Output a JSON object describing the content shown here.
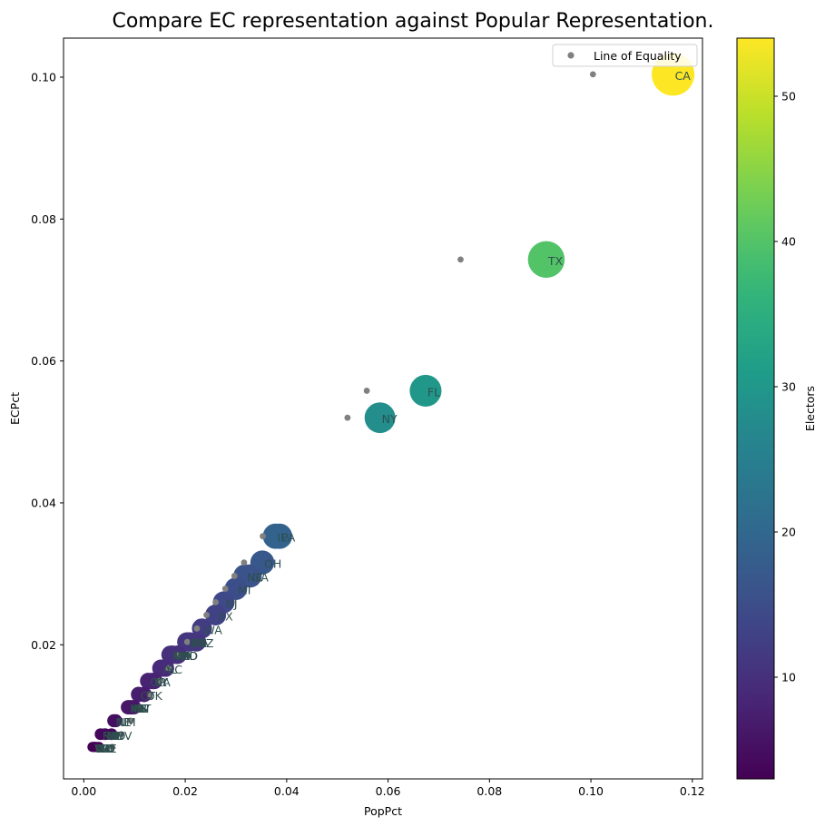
{
  "chart_data": {
    "type": "scatter",
    "title": "Compare EC representation against Popular Representation.",
    "xlabel": "PopPct",
    "ylabel": "ECPct",
    "xlim": [
      -0.004,
      0.122
    ],
    "ylim": [
      0.0011,
      0.1055
    ],
    "xticks": [
      0.0,
      0.02,
      0.04,
      0.06,
      0.08,
      0.1,
      0.12
    ],
    "yticks": [
      0.02,
      0.04,
      0.06,
      0.08,
      0.1
    ],
    "xtick_labels": [
      "0.00",
      "0.02",
      "0.04",
      "0.06",
      "0.08",
      "0.10",
      "0.12"
    ],
    "ytick_labels": [
      "0.02",
      "0.04",
      "0.06",
      "0.08",
      "0.10"
    ],
    "grid": false,
    "legend": {
      "position": "top-right",
      "entries": [
        "Line of Equality"
      ]
    },
    "colorbar": {
      "label": "Electors",
      "range": [
        3,
        54
      ],
      "ticks": [
        10,
        20,
        30,
        40,
        50
      ],
      "tick_labels": [
        "10",
        "20",
        "30",
        "40",
        "50"
      ],
      "colormap": "viridis"
    },
    "equality_series": {
      "name": "Line of Equality",
      "color": "#808080",
      "points": [
        [
          0.1004,
          0.1004
        ],
        [
          0.0743,
          0.0743
        ],
        [
          0.0558,
          0.0558
        ],
        [
          0.052,
          0.052
        ],
        [
          0.0353,
          0.0353
        ],
        [
          0.0316,
          0.0316
        ],
        [
          0.0297,
          0.0297
        ],
        [
          0.0279,
          0.0279
        ],
        [
          0.026,
          0.026
        ],
        [
          0.0242,
          0.0242
        ],
        [
          0.0223,
          0.0223
        ],
        [
          0.0204,
          0.0204
        ],
        [
          0.0186,
          0.0186
        ],
        [
          0.0167,
          0.0167
        ],
        [
          0.0149,
          0.0149
        ],
        [
          0.013,
          0.013
        ],
        [
          0.0112,
          0.0112
        ],
        [
          0.0093,
          0.0093
        ],
        [
          0.0074,
          0.0074
        ],
        [
          0.0056,
          0.0056
        ]
      ]
    },
    "states": [
      {
        "label": "CA",
        "pop": 0.1162,
        "ec": 0.1004,
        "electors": 54
      },
      {
        "label": "TX",
        "pop": 0.0912,
        "ec": 0.0743,
        "electors": 40
      },
      {
        "label": "FL",
        "pop": 0.0674,
        "ec": 0.0558,
        "electors": 30
      },
      {
        "label": "NY",
        "pop": 0.0584,
        "ec": 0.052,
        "electors": 28
      },
      {
        "label": "PA",
        "pop": 0.0386,
        "ec": 0.0353,
        "electors": 19
      },
      {
        "label": "IL",
        "pop": 0.0378,
        "ec": 0.0353,
        "electors": 19
      },
      {
        "label": "OH",
        "pop": 0.0352,
        "ec": 0.0316,
        "electors": 17
      },
      {
        "label": "GA",
        "pop": 0.0328,
        "ec": 0.0297,
        "electors": 16
      },
      {
        "label": "NC",
        "pop": 0.0318,
        "ec": 0.0297,
        "electors": 16
      },
      {
        "label": "MI",
        "pop": 0.03,
        "ec": 0.0279,
        "electors": 15
      },
      {
        "label": "NJ",
        "pop": 0.0276,
        "ec": 0.026,
        "electors": 14
      },
      {
        "label": "XX",
        "pop": 0.026,
        "ec": 0.0242,
        "electors": 13
      },
      {
        "label": "WA",
        "pop": 0.0233,
        "ec": 0.0223,
        "electors": 12
      },
      {
        "label": "AZ",
        "pop": 0.0222,
        "ec": 0.0204,
        "electors": 11
      },
      {
        "label": "TN",
        "pop": 0.0209,
        "ec": 0.0204,
        "electors": 11
      },
      {
        "label": "MA",
        "pop": 0.0208,
        "ec": 0.0204,
        "electors": 11
      },
      {
        "label": "IN",
        "pop": 0.0203,
        "ec": 0.0204,
        "electors": 11
      },
      {
        "label": "MD",
        "pop": 0.0185,
        "ec": 0.0186,
        "electors": 10
      },
      {
        "label": "MN",
        "pop": 0.0171,
        "ec": 0.0186,
        "electors": 10
      },
      {
        "label": "MO",
        "pop": 0.0184,
        "ec": 0.0186,
        "electors": 10
      },
      {
        "label": "WI",
        "pop": 0.0176,
        "ec": 0.0186,
        "electors": 10
      },
      {
        "label": "CO",
        "pop": 0.0174,
        "ec": 0.0186,
        "electors": 10
      },
      {
        "label": "AL",
        "pop": 0.0152,
        "ec": 0.0167,
        "electors": 9
      },
      {
        "label": "SC",
        "pop": 0.0161,
        "ec": 0.0167,
        "electors": 9
      },
      {
        "label": "LA",
        "pop": 0.0139,
        "ec": 0.0149,
        "electors": 8
      },
      {
        "label": "KY",
        "pop": 0.0135,
        "ec": 0.0149,
        "electors": 8
      },
      {
        "label": "OR",
        "pop": 0.0127,
        "ec": 0.0149,
        "electors": 8
      },
      {
        "label": "OK",
        "pop": 0.0119,
        "ec": 0.013,
        "electors": 7
      },
      {
        "label": "CT",
        "pop": 0.0108,
        "ec": 0.013,
        "electors": 7
      },
      {
        "label": "UT",
        "pop": 0.0099,
        "ec": 0.0112,
        "electors": 6
      },
      {
        "label": "IA",
        "pop": 0.0095,
        "ec": 0.0112,
        "electors": 6
      },
      {
        "label": "NV",
        "pop": 0.0094,
        "ec": 0.0112,
        "electors": 6
      },
      {
        "label": "AR",
        "pop": 0.0091,
        "ec": 0.0112,
        "electors": 6
      },
      {
        "label": "MS",
        "pop": 0.0088,
        "ec": 0.0112,
        "electors": 6
      },
      {
        "label": "KS",
        "pop": 0.0087,
        "ec": 0.0112,
        "electors": 6
      },
      {
        "label": "NM",
        "pop": 0.0063,
        "ec": 0.0093,
        "electors": 5
      },
      {
        "label": "NE",
        "pop": 0.0059,
        "ec": 0.0093,
        "electors": 5
      },
      {
        "label": "ID",
        "pop": 0.0055,
        "ec": 0.0074,
        "electors": 4
      },
      {
        "label": "WV",
        "pop": 0.0054,
        "ec": 0.0074,
        "electors": 4
      },
      {
        "label": "HI",
        "pop": 0.0043,
        "ec": 0.0074,
        "electors": 4
      },
      {
        "label": "NH",
        "pop": 0.0041,
        "ec": 0.0074,
        "electors": 4
      },
      {
        "label": "ME",
        "pop": 0.0041,
        "ec": 0.0074,
        "electors": 4
      },
      {
        "label": "RI",
        "pop": 0.0033,
        "ec": 0.0074,
        "electors": 4
      },
      {
        "label": "MT",
        "pop": 0.0033,
        "ec": 0.0074,
        "electors": 4
      },
      {
        "label": "DE",
        "pop": 0.003,
        "ec": 0.0056,
        "electors": 3
      },
      {
        "label": "SD",
        "pop": 0.0027,
        "ec": 0.0056,
        "electors": 3
      },
      {
        "label": "ND",
        "pop": 0.0023,
        "ec": 0.0056,
        "electors": 3
      },
      {
        "label": "AK",
        "pop": 0.0022,
        "ec": 0.0056,
        "electors": 3
      },
      {
        "label": "DC",
        "pop": 0.002,
        "ec": 0.0056,
        "electors": 3
      },
      {
        "label": "VT",
        "pop": 0.0019,
        "ec": 0.0056,
        "electors": 3
      },
      {
        "label": "WY",
        "pop": 0.0017,
        "ec": 0.0056,
        "electors": 3
      }
    ]
  }
}
